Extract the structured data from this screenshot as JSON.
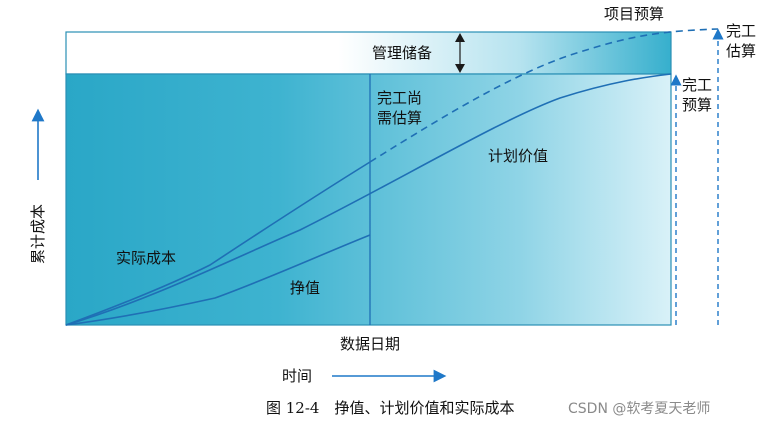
{
  "labels": {
    "project_budget": "项目预算",
    "eac_1": "完工",
    "eac_2": "估算",
    "bac_1": "完工",
    "bac_2": "预算",
    "management_reserve": "管理储备",
    "etc_1": "完工尚",
    "etc_2": "需估算",
    "planned_value": "计划价值",
    "actual_cost": "实际成本",
    "earned_value": "挣值",
    "data_date": "数据日期",
    "y_axis": "累计成本",
    "x_axis": "时间"
  },
  "caption": "图 12-4　挣值、计划价值和实际成本",
  "watermark": "CSDN @软考夏天老师",
  "colors": {
    "teal": "#2aa7c7",
    "line": "#1f6fb5",
    "arrow": "#1f78c8"
  }
}
